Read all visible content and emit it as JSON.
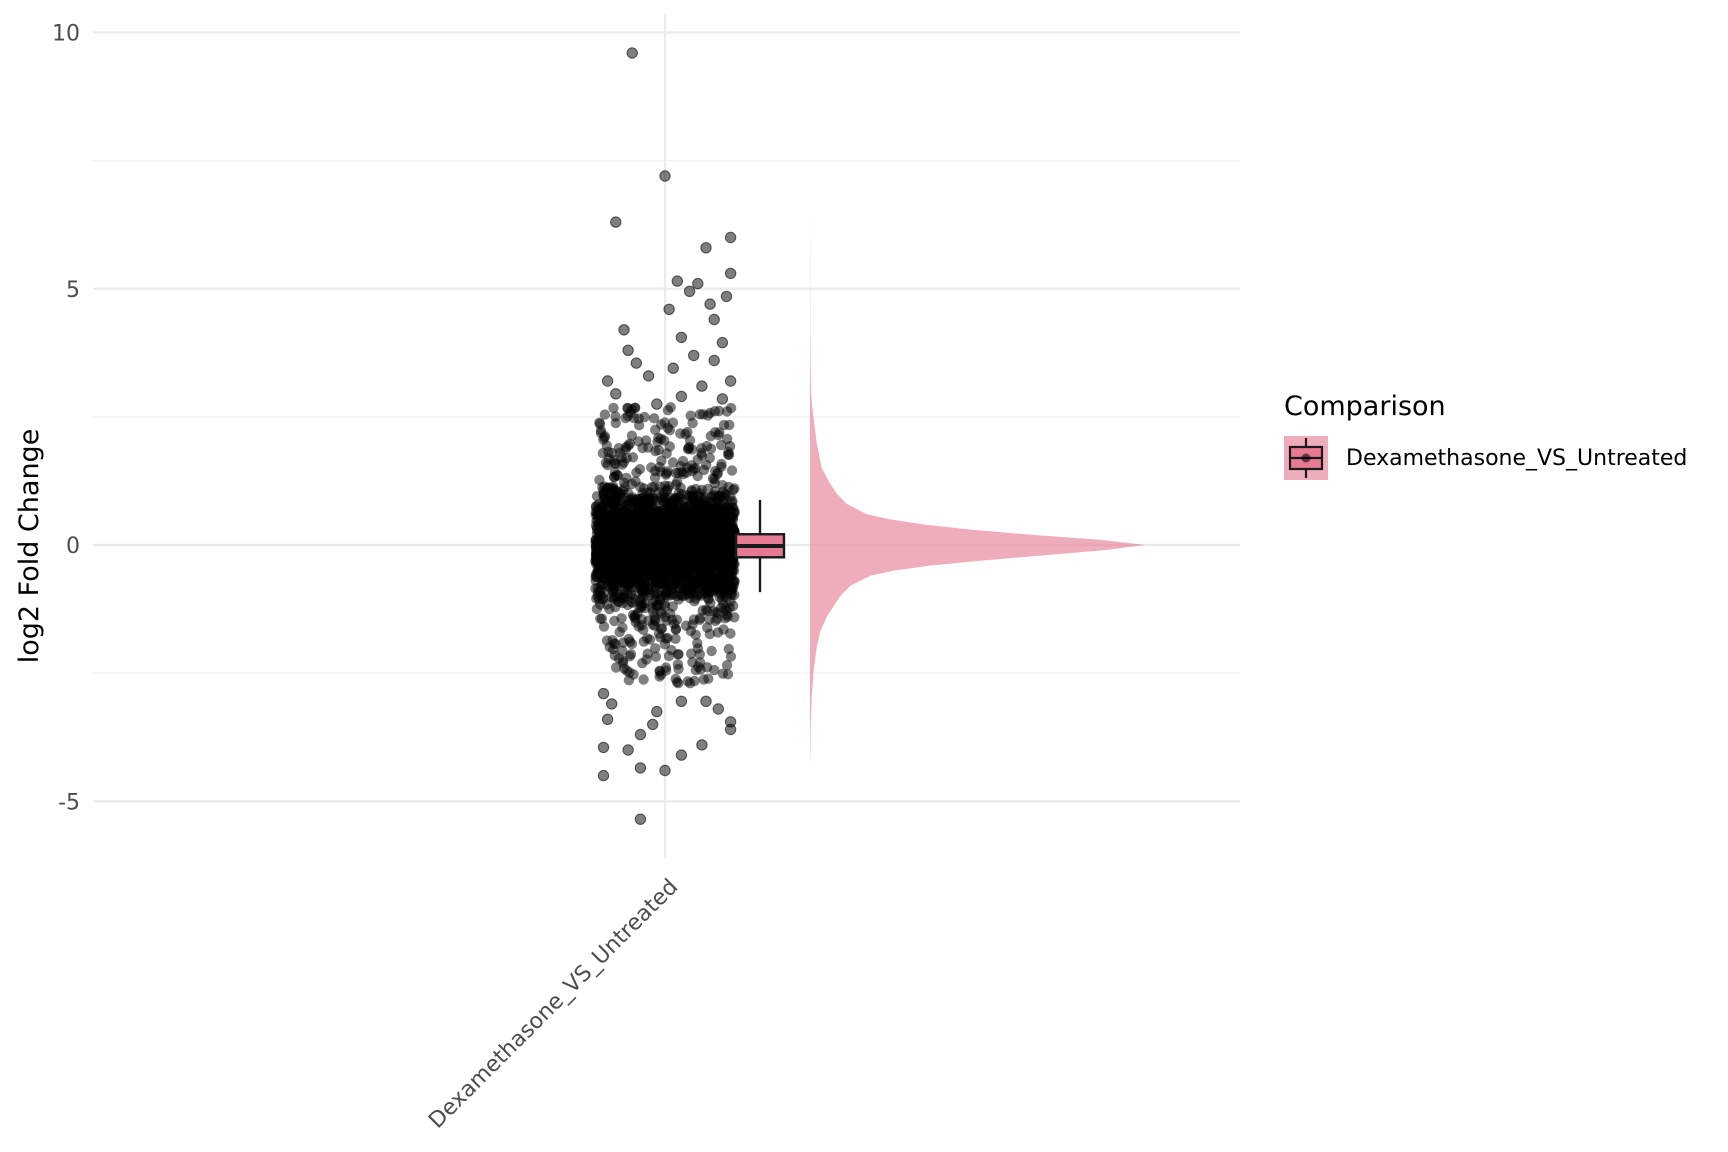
{
  "chart_data": {
    "type": "raincloud",
    "ylabel": "log2 Fold Change",
    "xlabel": "",
    "categories": [
      "Dexamethasone_VS_Untreated"
    ],
    "ylim": [
      -6.0,
      10.4
    ],
    "y_ticks": [
      -5,
      0,
      5,
      10
    ],
    "y_tick_labels": [
      "-5",
      "0",
      "5",
      "10"
    ],
    "grid": true,
    "legend": {
      "title": "Comparison",
      "placement": "right",
      "items": [
        {
          "label": "Dexamethasone_VS_Untreated",
          "color": "#e8899c"
        }
      ]
    },
    "series": [
      {
        "name": "Dexamethasone_VS_Untreated",
        "color": "#e8899c",
        "boxplot": {
          "whisker_low": -0.92,
          "q1": -0.24,
          "median": -0.02,
          "q3": 0.21,
          "whisker_high": 0.88
        },
        "density": {
          "y": [
            -4.4,
            -3.5,
            -3.0,
            -2.5,
            -2.0,
            -1.7,
            -1.4,
            -1.2,
            -1.0,
            -0.8,
            -0.6,
            -0.5,
            -0.4,
            -0.3,
            -0.2,
            -0.1,
            0.0,
            0.1,
            0.2,
            0.3,
            0.4,
            0.5,
            0.6,
            0.8,
            1.0,
            1.2,
            1.5,
            2.0,
            2.6,
            3.0,
            4.0,
            5.0,
            6.0,
            7.0
          ],
          "density": [
            0.0,
            0.002,
            0.005,
            0.01,
            0.02,
            0.03,
            0.05,
            0.07,
            0.09,
            0.12,
            0.18,
            0.25,
            0.36,
            0.52,
            0.7,
            0.88,
            1.0,
            0.87,
            0.66,
            0.48,
            0.34,
            0.24,
            0.17,
            0.11,
            0.08,
            0.06,
            0.035,
            0.02,
            0.008,
            0.003,
            0.001,
            0.0005,
            0.0002,
            0.0
          ]
        },
        "outlier_points": [
          {
            "x": -0.08,
            "y": 9.6
          },
          {
            "x": 0.0,
            "y": 7.2
          },
          {
            "x": -0.12,
            "y": 6.3
          },
          {
            "x": 0.1,
            "y": 5.8
          },
          {
            "x": 0.16,
            "y": 6.0
          },
          {
            "x": 0.16,
            "y": 5.3
          },
          {
            "x": 0.03,
            "y": 5.15
          },
          {
            "x": 0.08,
            "y": 5.1
          },
          {
            "x": 0.06,
            "y": 4.95
          },
          {
            "x": 0.15,
            "y": 4.85
          },
          {
            "x": 0.01,
            "y": 4.6
          },
          {
            "x": 0.11,
            "y": 4.7
          },
          {
            "x": 0.12,
            "y": 4.4
          },
          {
            "x": -0.1,
            "y": 4.2
          },
          {
            "x": 0.04,
            "y": 4.05
          },
          {
            "x": 0.14,
            "y": 3.95
          },
          {
            "x": -0.09,
            "y": 3.8
          },
          {
            "x": 0.07,
            "y": 3.7
          },
          {
            "x": 0.12,
            "y": 3.6
          },
          {
            "x": -0.07,
            "y": 3.55
          },
          {
            "x": 0.02,
            "y": 3.45
          },
          {
            "x": 0.16,
            "y": 3.2
          },
          {
            "x": -0.14,
            "y": 3.2
          },
          {
            "x": -0.04,
            "y": 3.3
          },
          {
            "x": 0.09,
            "y": 3.1
          },
          {
            "x": -0.12,
            "y": 2.95
          },
          {
            "x": 0.04,
            "y": 2.9
          },
          {
            "x": -0.02,
            "y": 2.75
          },
          {
            "x": 0.14,
            "y": 2.85
          },
          {
            "x": -0.15,
            "y": -2.9
          },
          {
            "x": 0.1,
            "y": -3.05
          },
          {
            "x": -0.13,
            "y": -3.1
          },
          {
            "x": 0.13,
            "y": -3.2
          },
          {
            "x": -0.02,
            "y": -3.25
          },
          {
            "x": 0.04,
            "y": -3.05
          },
          {
            "x": -0.14,
            "y": -3.4
          },
          {
            "x": 0.16,
            "y": -3.45
          },
          {
            "x": -0.03,
            "y": -3.5
          },
          {
            "x": 0.16,
            "y": -3.6
          },
          {
            "x": -0.06,
            "y": -3.7
          },
          {
            "x": -0.15,
            "y": -3.95
          },
          {
            "x": 0.09,
            "y": -3.9
          },
          {
            "x": -0.09,
            "y": -4.0
          },
          {
            "x": 0.04,
            "y": -4.1
          },
          {
            "x": -0.06,
            "y": -4.35
          },
          {
            "x": -0.15,
            "y": -4.5
          },
          {
            "x": 0.0,
            "y": -4.4
          },
          {
            "x": -0.06,
            "y": -5.35
          }
        ],
        "jitter_core": {
          "y_range": [
            -2.6,
            2.6
          ],
          "x_spread": 0.17
        }
      }
    ]
  }
}
